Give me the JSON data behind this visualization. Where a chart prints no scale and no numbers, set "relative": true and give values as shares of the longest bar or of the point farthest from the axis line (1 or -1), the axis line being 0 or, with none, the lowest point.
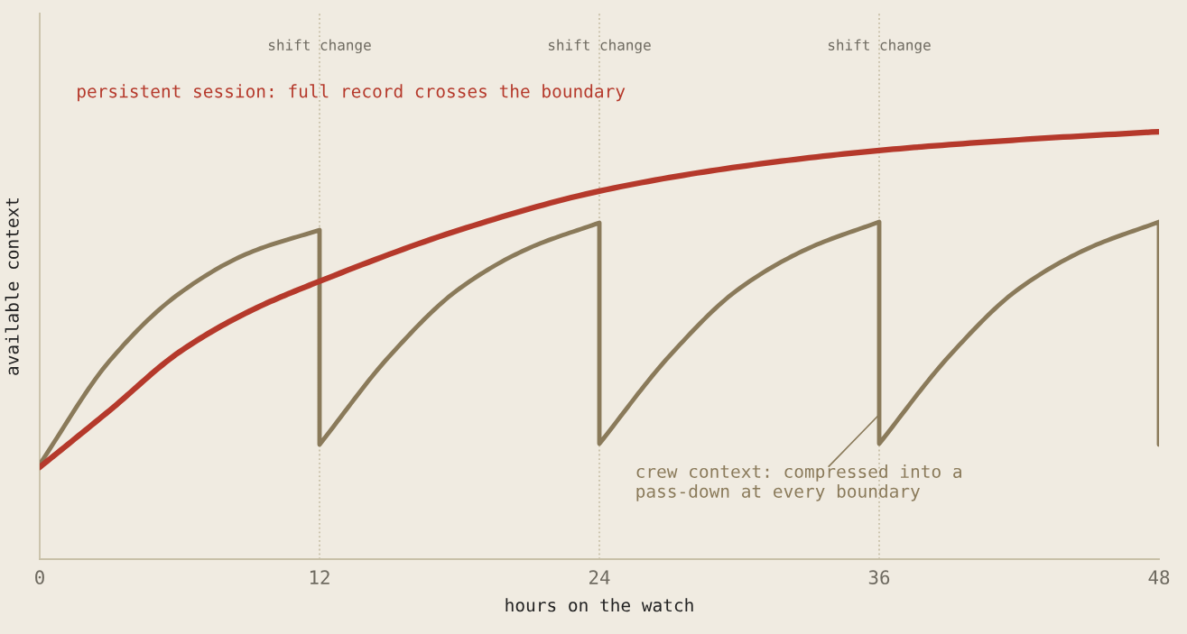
{
  "chart_data": {
    "type": "line",
    "relative": true,
    "xlabel": "hours on the watch",
    "ylabel": "available context",
    "xlim": [
      0,
      48
    ],
    "xticks": [
      0,
      12,
      24,
      36,
      48
    ],
    "series": [
      {
        "name": "persistent session: full record crosses the boundary",
        "color": "#b5392b",
        "x": [
          0,
          3,
          6,
          9,
          12,
          18,
          24,
          30,
          36,
          42,
          48
        ],
        "values": [
          0.215,
          0.348,
          0.485,
          0.58,
          0.65,
          0.77,
          0.861,
          0.918,
          0.956,
          0.981,
          1.0
        ]
      },
      {
        "name": "crew context: compressed into a\npass-down at every boundary",
        "color": "#8a7a5a",
        "x": [
          0,
          3,
          6,
          9,
          12,
          12,
          15,
          18,
          21,
          24,
          24,
          27,
          30,
          33,
          36,
          36,
          39,
          42,
          45,
          48,
          48
        ],
        "values": [
          0.222,
          0.464,
          0.622,
          0.717,
          0.77,
          0.268,
          0.475,
          0.633,
          0.728,
          0.787,
          0.27,
          0.475,
          0.633,
          0.728,
          0.789,
          0.27,
          0.475,
          0.633,
          0.728,
          0.789,
          0.268
        ]
      }
    ],
    "ref_lines": [
      {
        "axis": "x",
        "value": 12,
        "label": "shift change",
        "color": "#c8c0a8",
        "line_style": "dotted"
      },
      {
        "axis": "x",
        "value": 24,
        "label": "shift change",
        "color": "#c8c0a8",
        "line_style": "dotted"
      },
      {
        "axis": "x",
        "value": 36,
        "label": "shift change",
        "color": "#c8c0a8",
        "line_style": "dotted"
      }
    ],
    "legend": false,
    "grid": false
  }
}
